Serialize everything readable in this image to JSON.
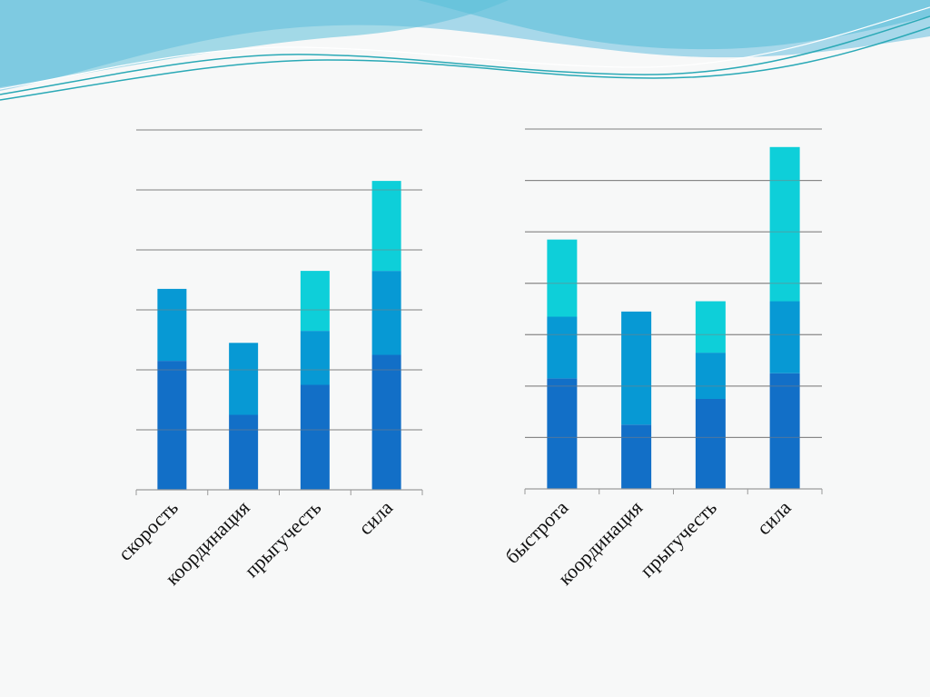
{
  "colors": {
    "background": "#f7f8f8",
    "wave_light": "#a7d8ea",
    "wave_mid": "#5cc0d8",
    "wave_line": "#2aa9b6",
    "segment_1": "#126fc7",
    "segment_2": "#0799d4",
    "segment_3": "#0ecfd9",
    "gridline": "#7f7f7f",
    "axis": "#9a9a9a"
  },
  "chart_data": [
    {
      "type": "bar",
      "stacked": true,
      "categories": [
        "скорость",
        "координация",
        "прыгучесть",
        "сила"
      ],
      "series": [
        {
          "values": [
            2.15,
            1.25,
            1.75,
            2.25
          ]
        },
        {
          "values": [
            1.2,
            1.2,
            0.9,
            1.4
          ]
        },
        {
          "values": [
            0,
            0,
            1.0,
            1.5
          ]
        }
      ],
      "ylim": [
        0,
        6
      ],
      "grid": true,
      "legend": "none"
    },
    {
      "type": "bar",
      "stacked": true,
      "categories": [
        "быстрота",
        "координация",
        "прыгучесть",
        "сила"
      ],
      "series": [
        {
          "values": [
            2.15,
            1.25,
            1.75,
            2.25
          ]
        },
        {
          "values": [
            1.2,
            2.2,
            0.9,
            1.4
          ]
        },
        {
          "values": [
            1.5,
            0,
            1.0,
            3.0
          ]
        }
      ],
      "ylim": [
        0,
        7
      ],
      "grid": true,
      "legend": "none"
    }
  ]
}
